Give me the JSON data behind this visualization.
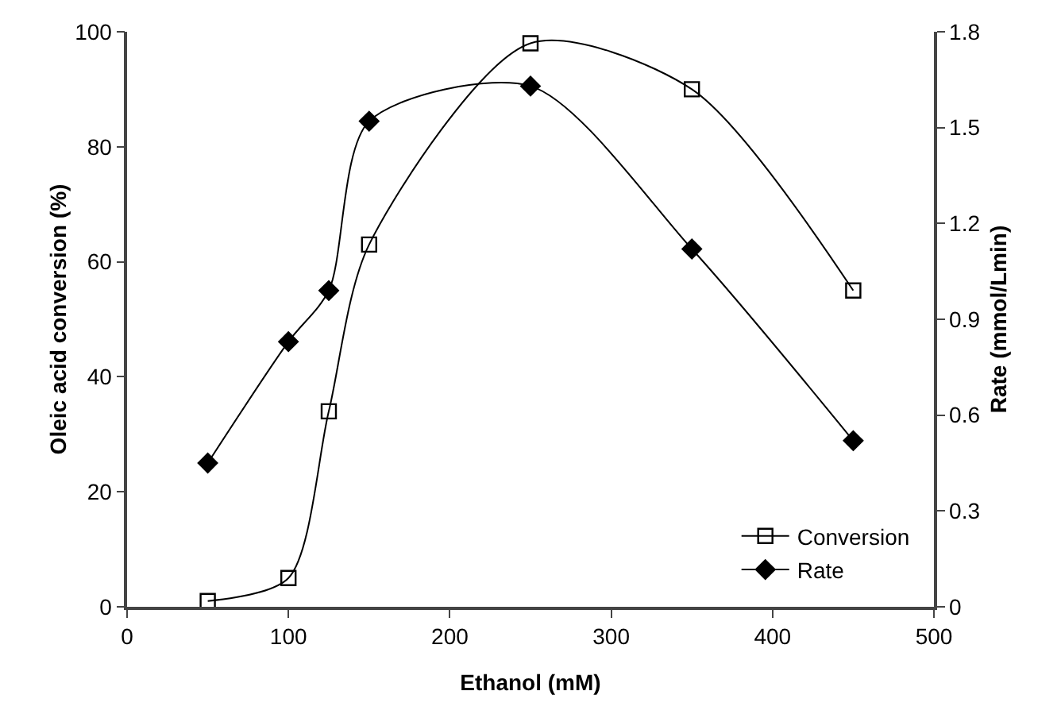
{
  "chart_data": {
    "type": "line",
    "xlabel": "Ethanol (mM)",
    "ylabel": "Oleic acid conversion (%)",
    "y2label": "Rate (mmol/Lmin)",
    "x": [
      50,
      100,
      125,
      150,
      250,
      350,
      450
    ],
    "series": [
      {
        "name": "Conversion",
        "color": "#000000",
        "marker": "square",
        "values": [
          1,
          5,
          34,
          63,
          98,
          90,
          55
        ]
      },
      {
        "name": "Rate",
        "color": "#000000",
        "marker": "diamond",
        "axis": "y2",
        "values": [
          0.45,
          0.83,
          0.99,
          1.52,
          1.63,
          1.12,
          0.52
        ]
      }
    ],
    "xlim": [
      0,
      500
    ],
    "xticks": [
      0,
      100,
      200,
      300,
      400,
      500
    ],
    "ylim": [
      0,
      100
    ],
    "yticks": [
      0,
      20,
      40,
      60,
      80,
      100
    ],
    "y2lim": [
      0,
      1.8
    ],
    "y2ticks": [
      {
        "value": 0,
        "label": "0"
      },
      {
        "value": 0.3,
        "label": "0.3"
      },
      {
        "value": 0.6,
        "label": "0.6"
      },
      {
        "value": 0.9,
        "label": "0.9"
      },
      {
        "value": 1.2,
        "label": "1.2"
      },
      {
        "value": 1.5,
        "label": "1.5"
      },
      {
        "value": 1.8,
        "label": "1.8"
      }
    ],
    "grid": false,
    "legend": "bottom right",
    "line_style": "solid"
  }
}
